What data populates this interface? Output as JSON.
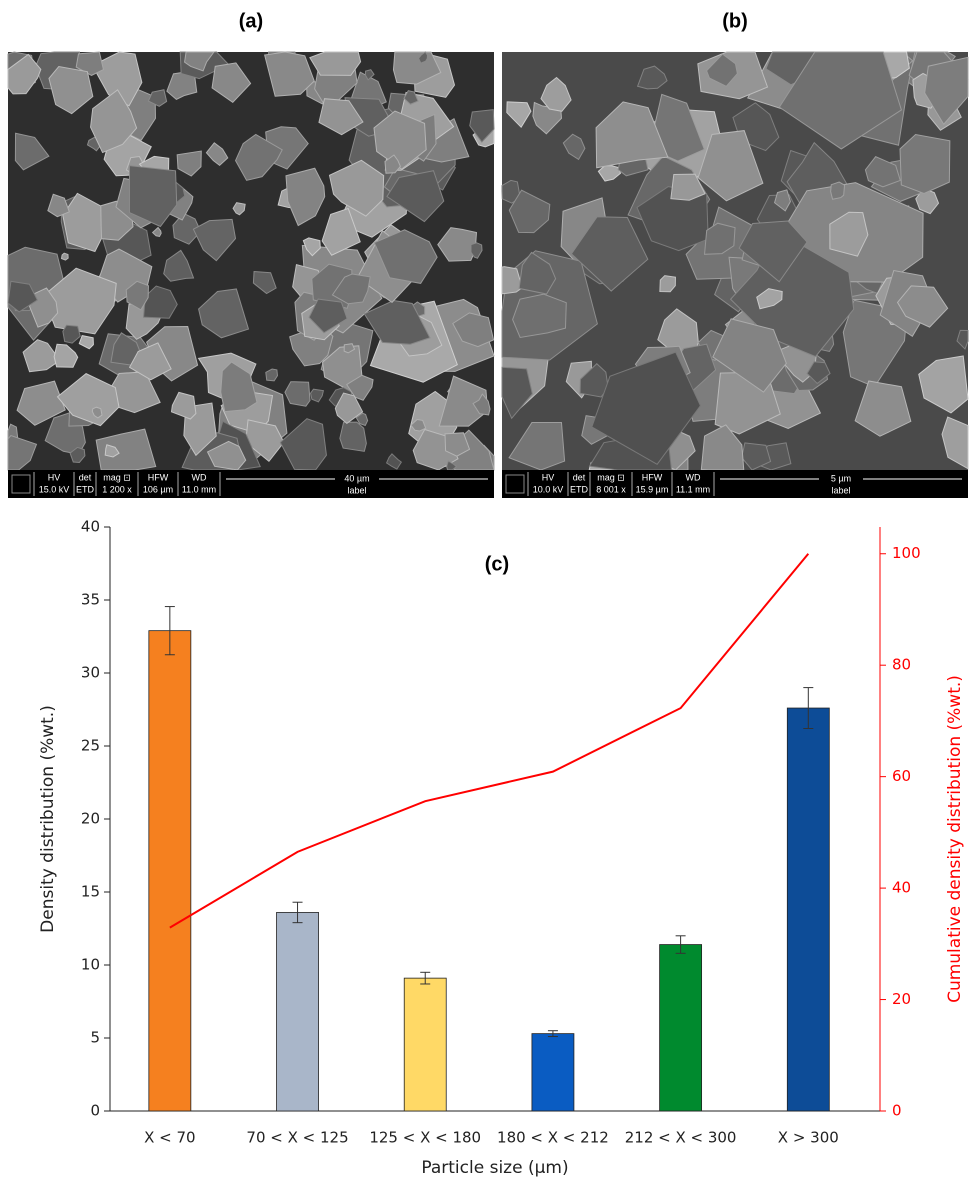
{
  "images": [
    {
      "label": "(a)",
      "info": [
        [
          "HV",
          "15.0 kV"
        ],
        [
          "det",
          "ETD"
        ],
        [
          "mag ⊡",
          "1 200 x"
        ],
        [
          "HFW",
          "106 µm"
        ],
        [
          "WD",
          "11.0 mm"
        ]
      ],
      "scale": "40 µm",
      "scale_label": "label"
    },
    {
      "label": "(b)",
      "info": [
        [
          "HV",
          "10.0 kV"
        ],
        [
          "det",
          "ETD"
        ],
        [
          "mag ⊡",
          "8 001 x"
        ],
        [
          "HFW",
          "15.9 µm"
        ],
        [
          "WD",
          "11.1 mm"
        ]
      ],
      "scale": "5 µm",
      "scale_label": "label"
    }
  ],
  "chart_data": {
    "type": "bar",
    "annotation": "(c)",
    "x_label": "Particle size (µm)",
    "y_label": "Density distribution (%wt.)",
    "y2_label": "Cumulative density distribution (%wt.)",
    "categories": [
      "X < 70",
      "70 < X < 125",
      "125 < X < 180",
      "180 < X < 212",
      "212 < X < 300",
      "X > 300"
    ],
    "series": [
      {
        "type": "bar",
        "colors": [
          "#f5801f",
          "#a9b6c9",
          "#ffd966",
          "#0a5cc2",
          "#008a2e",
          "#0d4c97"
        ],
        "values": [
          32.9,
          13.6,
          9.1,
          5.3,
          11.4,
          27.6
        ],
        "errors": [
          1.65,
          0.7,
          0.4,
          0.2,
          0.6,
          1.4
        ]
      },
      {
        "type": "line",
        "color": "#ff0000",
        "axis": "y2",
        "values": [
          32.9,
          46.5,
          55.6,
          60.9,
          72.3,
          100
        ]
      }
    ],
    "ylim": [
      0,
      40
    ],
    "yticks": [
      0,
      5,
      10,
      15,
      20,
      25,
      30,
      35,
      40
    ],
    "y2lim": [
      0,
      104.8
    ],
    "y2ticks": [
      0,
      20,
      40,
      60,
      80,
      100
    ],
    "y2color": "#ff0000"
  }
}
